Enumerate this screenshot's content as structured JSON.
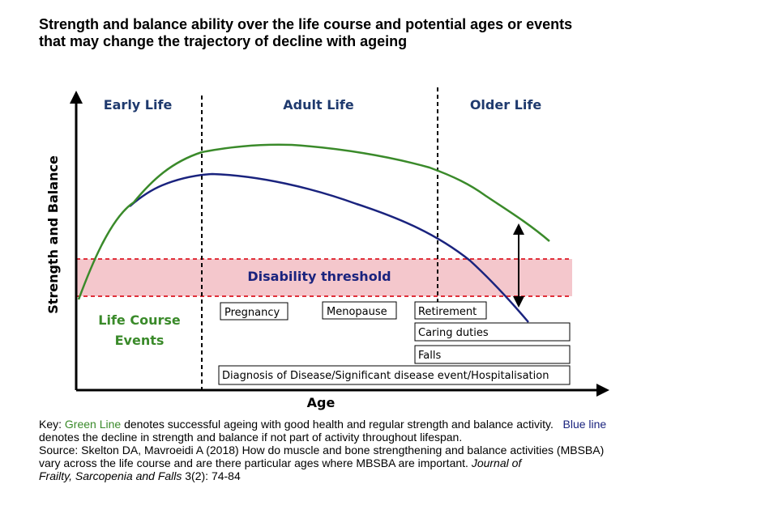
{
  "title": {
    "line1": "Strength and balance ability over the life course and potential ages or events",
    "line2": "that may change the trajectory of decline with ageing"
  },
  "diagram": {
    "y_axis_label": "Strength and Balance",
    "x_axis_label": "Age",
    "phases": [
      "Early Life",
      "Adult Life",
      "Older Life"
    ],
    "threshold_label": "Disability threshold",
    "events_heading": [
      "Life Course",
      "Events"
    ],
    "events": {
      "pregnancy": "Pregnancy",
      "menopause": "Menopause",
      "retirement": "Retirement",
      "caring": "Caring duties",
      "falls": "Falls",
      "diagnosis": "Diagnosis of Disease/Significant disease event/Hospitalisation"
    },
    "colors": {
      "green_line": "#3a8a2a",
      "blue_line": "#1a237e",
      "phase_text": "#1f3a6e",
      "threshold_band": "#f4c7cc",
      "threshold_dash": "#e0303a"
    }
  },
  "key": {
    "prefix": "Key: ",
    "green_term": "Green Line",
    "green_text": " denotes successful ageing with good health and regular strength and balance activity.   ",
    "blue_term": "Blue line",
    "line2": "denotes the decline in strength and balance if not part of activity throughout lifespan.",
    "source_line1": "Source: Skelton DA, Mavroeidi A (2018) How do muscle and bone strengthening and balance activities (MBSBA)",
    "source_line2_plain": "vary across the life course and are there particular ages where MBSBA are important. ",
    "source_line2_italic": "Journal of",
    "source_line3_italic": "Frailty, Sarcopenia and Falls",
    "source_line3_plain": " 3(2): 74-84"
  }
}
